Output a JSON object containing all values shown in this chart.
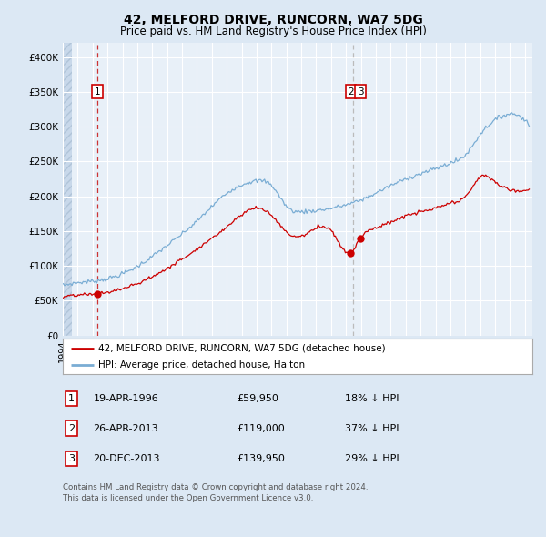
{
  "title": "42, MELFORD DRIVE, RUNCORN, WA7 5DG",
  "subtitle": "Price paid vs. HM Land Registry's House Price Index (HPI)",
  "bg_color": "#dce8f4",
  "plot_bg": "#e8f0f8",
  "red_color": "#cc0000",
  "blue_color": "#7aadd4",
  "legend_label_red": "42, MELFORD DRIVE, RUNCORN, WA7 5DG (detached house)",
  "legend_label_blue": "HPI: Average price, detached house, Halton",
  "table_rows": [
    {
      "num": "1",
      "date": "19-APR-1996",
      "price": "£59,950",
      "pct": "18% ↓ HPI"
    },
    {
      "num": "2",
      "date": "26-APR-2013",
      "price": "£119,000",
      "pct": "37% ↓ HPI"
    },
    {
      "num": "3",
      "date": "20-DEC-2013",
      "price": "£139,950",
      "pct": "29% ↓ HPI"
    }
  ],
  "footnote": "Contains HM Land Registry data © Crown copyright and database right 2024.\nThis data is licensed under the Open Government Licence v3.0.",
  "ylim": [
    0,
    420000
  ],
  "yticks": [
    0,
    50000,
    100000,
    150000,
    200000,
    250000,
    300000,
    350000,
    400000
  ],
  "ytick_labels": [
    "£0",
    "£50K",
    "£100K",
    "£150K",
    "£200K",
    "£250K",
    "£300K",
    "£350K",
    "£400K"
  ]
}
